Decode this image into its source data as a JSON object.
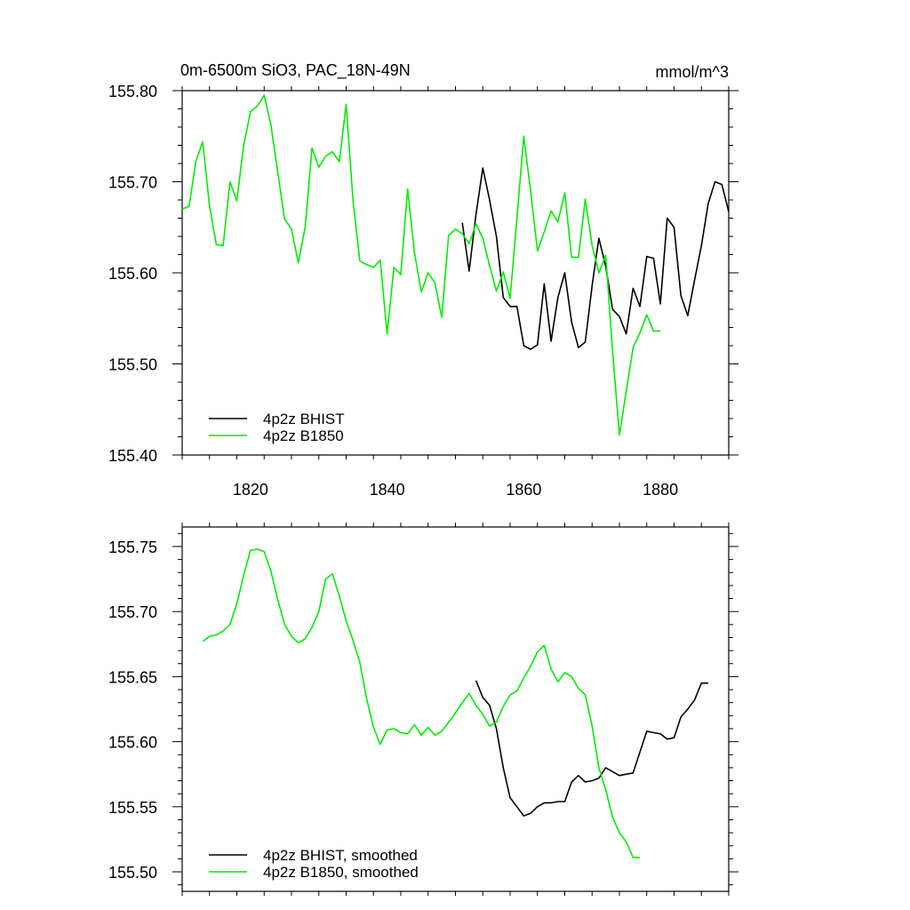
{
  "chart_data": [
    {
      "type": "line",
      "title": "0m-6500m SiO3, PAC_18N-49N",
      "units": "mmol/m^3",
      "xlabel": "",
      "ylabel": "",
      "xlim": [
        1810,
        1890
      ],
      "ylim": [
        155.4,
        155.8
      ],
      "xticks": [
        1820,
        1840,
        1860,
        1880
      ],
      "xtick_labels": [
        "1820",
        "1840",
        "1860",
        "1880"
      ],
      "yticks": [
        155.4,
        155.5,
        155.6,
        155.7,
        155.8
      ],
      "ytick_labels": [
        "155.40",
        "155.50",
        "155.60",
        "155.70",
        "155.80"
      ],
      "legend_position": "bottom-left",
      "series": [
        {
          "name": "4p2z BHIST",
          "color": "#000000",
          "x": [
            1851,
            1852,
            1853,
            1854,
            1855,
            1856,
            1857,
            1858,
            1859,
            1860,
            1861,
            1862,
            1863,
            1864,
            1865,
            1866,
            1867,
            1868,
            1869,
            1870,
            1871,
            1872,
            1873,
            1874,
            1875,
            1876,
            1877,
            1878,
            1879,
            1880,
            1881,
            1882,
            1883,
            1884,
            1885,
            1886,
            1887,
            1888,
            1889,
            1890
          ],
          "values": [
            155.655,
            155.602,
            155.664,
            155.715,
            155.68,
            155.64,
            155.573,
            155.563,
            155.563,
            155.52,
            155.516,
            155.521,
            155.588,
            155.525,
            155.573,
            155.6,
            155.546,
            155.518,
            155.524,
            155.586,
            155.638,
            155.607,
            155.56,
            155.552,
            155.533,
            155.583,
            155.563,
            155.618,
            155.616,
            155.566,
            155.66,
            155.65,
            155.575,
            155.553,
            155.592,
            155.63,
            155.676,
            155.7,
            155.697,
            155.667
          ]
        },
        {
          "name": "4p2z B1850",
          "color": "#00ee00",
          "x": [
            1810,
            1811,
            1812,
            1813,
            1814,
            1815,
            1816,
            1817,
            1818,
            1819,
            1820,
            1821,
            1822,
            1823,
            1824,
            1825,
            1826,
            1827,
            1828,
            1829,
            1830,
            1831,
            1832,
            1833,
            1834,
            1835,
            1836,
            1837,
            1838,
            1839,
            1840,
            1841,
            1842,
            1843,
            1844,
            1845,
            1846,
            1847,
            1848,
            1849,
            1850,
            1851,
            1852,
            1853,
            1854,
            1855,
            1856,
            1857,
            1858,
            1859,
            1860,
            1861,
            1862,
            1863,
            1864,
            1865,
            1866,
            1867,
            1868,
            1869,
            1870,
            1871,
            1872,
            1873,
            1874,
            1875,
            1876,
            1877,
            1878,
            1879,
            1880
          ],
          "values": [
            155.67,
            155.673,
            155.722,
            155.744,
            155.673,
            155.631,
            155.63,
            155.7,
            155.679,
            155.74,
            155.777,
            155.783,
            155.795,
            155.762,
            155.71,
            155.659,
            155.648,
            155.611,
            155.65,
            155.737,
            155.716,
            155.728,
            155.733,
            155.722,
            155.785,
            155.68,
            155.613,
            155.609,
            155.606,
            155.614,
            155.533,
            155.606,
            155.598,
            155.692,
            155.622,
            155.579,
            155.6,
            155.589,
            155.551,
            155.641,
            155.648,
            155.643,
            155.632,
            155.654,
            155.638,
            155.608,
            155.58,
            155.601,
            155.572,
            155.66,
            155.75,
            155.69,
            155.624,
            155.645,
            155.668,
            155.656,
            155.688,
            155.617,
            155.617,
            155.681,
            155.63,
            155.6,
            155.619,
            155.514,
            155.422,
            155.47,
            155.518,
            155.534,
            155.554,
            155.536,
            155.536
          ]
        }
      ]
    },
    {
      "type": "line",
      "title": "",
      "xlabel": "",
      "ylabel": "",
      "xlim": [
        1810,
        1890
      ],
      "ylim": [
        155.485,
        155.765
      ],
      "xticks": [
        1820,
        1840,
        1860,
        1880
      ],
      "xtick_labels": [],
      "yticks": [
        155.5,
        155.55,
        155.6,
        155.65,
        155.7,
        155.75
      ],
      "ytick_labels": [
        "155.50",
        "155.55",
        "155.60",
        "155.65",
        "155.70",
        "155.75"
      ],
      "legend_position": "bottom-left",
      "series": [
        {
          "name": "4p2z BHIST, smoothed",
          "color": "#000000",
          "x": [
            1853,
            1854,
            1855,
            1856,
            1857,
            1858,
            1859,
            1860,
            1861,
            1862,
            1863,
            1864,
            1865,
            1866,
            1867,
            1868,
            1869,
            1870,
            1871,
            1872,
            1873,
            1874,
            1875,
            1876,
            1877,
            1878,
            1879,
            1880,
            1881,
            1882,
            1883,
            1884,
            1885,
            1886,
            1887
          ],
          "values": [
            155.647,
            155.634,
            155.628,
            155.61,
            155.58,
            155.557,
            155.55,
            155.543,
            155.545,
            155.55,
            155.553,
            155.553,
            155.554,
            155.554,
            155.569,
            155.574,
            155.569,
            155.57,
            155.572,
            155.58,
            155.577,
            155.574,
            155.575,
            155.576,
            155.592,
            155.608,
            155.607,
            155.606,
            155.602,
            155.603,
            155.619,
            155.625,
            155.632,
            155.645,
            155.645
          ]
        },
        {
          "name": "4p2z B1850, smoothed",
          "color": "#00ee00",
          "x": [
            1813,
            1814,
            1815,
            1816,
            1817,
            1818,
            1819,
            1820,
            1821,
            1822,
            1823,
            1824,
            1825,
            1826,
            1827,
            1828,
            1829,
            1830,
            1831,
            1832,
            1833,
            1834,
            1835,
            1836,
            1837,
            1838,
            1839,
            1840,
            1841,
            1842,
            1843,
            1844,
            1845,
            1846,
            1847,
            1848,
            1849,
            1850,
            1851,
            1852,
            1853,
            1854,
            1855,
            1856,
            1857,
            1858,
            1859,
            1860,
            1861,
            1862,
            1863,
            1864,
            1865,
            1866,
            1867,
            1868,
            1869,
            1870,
            1871,
            1872,
            1873,
            1874,
            1875,
            1876,
            1877
          ],
          "values": [
            155.677,
            155.681,
            155.682,
            155.685,
            155.69,
            155.706,
            155.728,
            155.747,
            155.748,
            155.746,
            155.731,
            155.709,
            155.69,
            155.681,
            155.676,
            155.679,
            155.688,
            155.7,
            155.725,
            155.729,
            155.712,
            155.693,
            155.678,
            155.661,
            155.633,
            155.611,
            155.598,
            155.609,
            155.61,
            155.607,
            155.606,
            155.613,
            155.605,
            155.611,
            155.605,
            155.608,
            155.615,
            155.622,
            155.63,
            155.637,
            155.628,
            155.621,
            155.612,
            155.615,
            155.627,
            155.636,
            155.639,
            155.649,
            155.658,
            155.669,
            155.674,
            155.656,
            155.646,
            155.653,
            155.65,
            155.641,
            155.636,
            155.612,
            155.58,
            155.563,
            155.542,
            155.53,
            155.523,
            155.511,
            155.511
          ]
        }
      ]
    }
  ]
}
